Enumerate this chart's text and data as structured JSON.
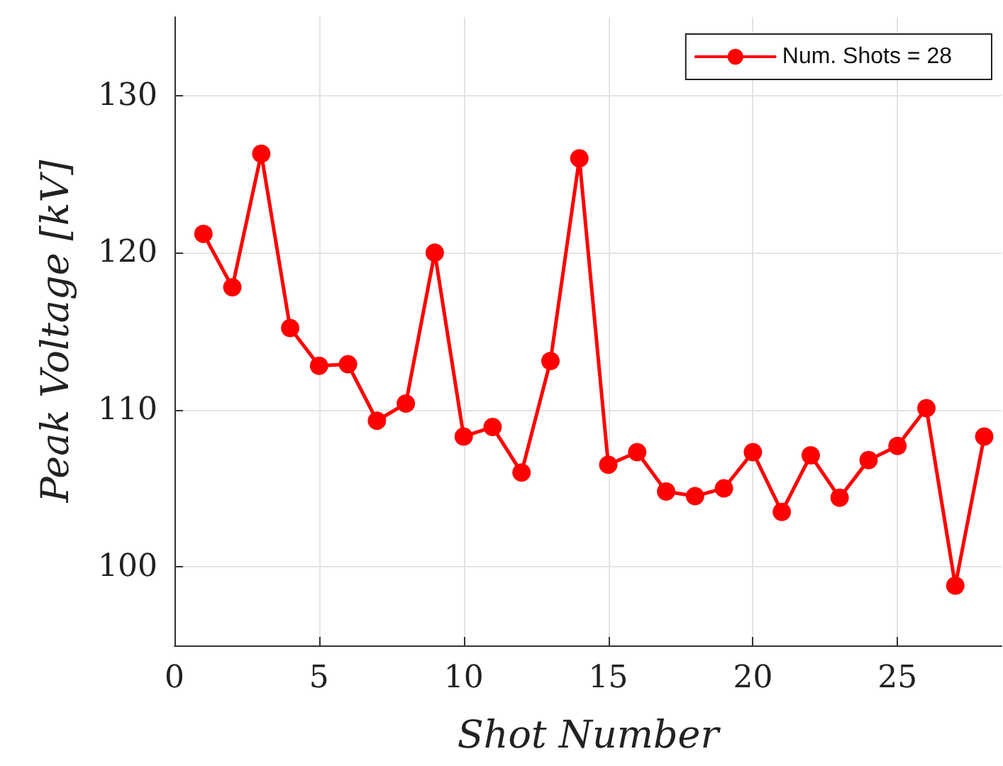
{
  "chart_data": {
    "type": "line",
    "xlabel": "Shot Number",
    "ylabel": "Peak Voltage [kV]",
    "x": [
      1,
      2,
      3,
      4,
      5,
      6,
      7,
      8,
      9,
      10,
      11,
      12,
      13,
      14,
      15,
      16,
      17,
      18,
      19,
      20,
      21,
      22,
      23,
      24,
      25,
      26,
      27,
      28
    ],
    "series": [
      {
        "name": "Num. Shots = 28",
        "color": "#ff0000",
        "values": [
          121.2,
          117.8,
          126.3,
          115.2,
          112.8,
          112.9,
          109.3,
          110.4,
          120.0,
          108.3,
          108.9,
          106.0,
          113.1,
          126.0,
          106.5,
          107.3,
          104.8,
          104.5,
          105.0,
          107.3,
          103.5,
          107.1,
          104.4,
          106.8,
          107.7,
          110.1,
          98.8,
          108.3
        ]
      }
    ],
    "xlim": [
      0,
      28.6
    ],
    "xticks": [
      0,
      5,
      10,
      15,
      20,
      25
    ],
    "ylim": [
      95,
      135
    ],
    "yticks": [
      100,
      110,
      120,
      130
    ],
    "grid": true,
    "legend": "top right",
    "marker": "circle",
    "line_style": "solid"
  }
}
